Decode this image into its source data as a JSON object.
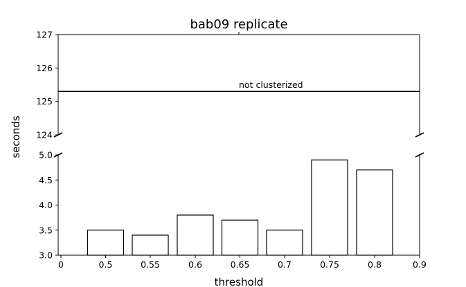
{
  "chart_data": {
    "type": "bar",
    "title": "bab09 replicate",
    "xlabel": "threshold",
    "ylabel": "seconds",
    "grid": false,
    "broken_y_axis": true,
    "x_ticks": [
      "0",
      "0.5",
      "0.55",
      "0.6",
      "0.65",
      "0.7",
      "0.75",
      "0.8",
      "0.9"
    ],
    "categories": [
      "0.5",
      "0.55",
      "0.6",
      "0.65",
      "0.7",
      "0.75",
      "0.8"
    ],
    "values": [
      3.5,
      3.4,
      3.8,
      3.7,
      3.5,
      4.9,
      4.7
    ],
    "top_panel": {
      "ylim": [
        124,
        127
      ],
      "y_ticks": [
        "124",
        "125",
        "126",
        "127"
      ]
    },
    "bottom_panel": {
      "ylim": [
        3.0,
        5.0
      ],
      "y_ticks": [
        "3.0",
        "3.5",
        "4.0",
        "4.5",
        "5.0"
      ]
    },
    "reference_line": {
      "value": 125.3,
      "label": "not clusterized"
    }
  }
}
